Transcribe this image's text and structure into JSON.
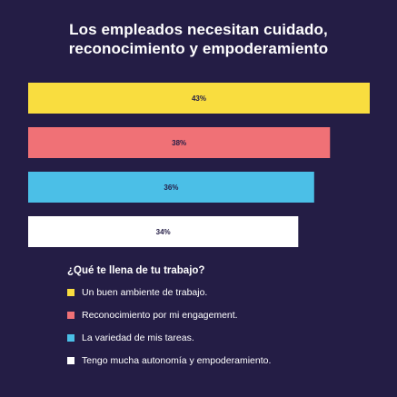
{
  "title": {
    "line1": "Los empleados necesitan cuidado,",
    "line2": "reconocimiento y empoderamiento"
  },
  "chart_data": {
    "type": "bar",
    "orientation": "horizontal",
    "values": [
      43,
      38,
      36,
      34
    ],
    "data_labels": [
      "43%",
      "38%",
      "36%",
      "34%"
    ],
    "colors": [
      "#f9dd3f",
      "#f07176",
      "#4bbfe7",
      "#ffffff"
    ],
    "xlim": [
      0,
      43
    ],
    "grid": false,
    "legend_title": "¿Qué te llena de tu trabajo?",
    "legend_placement": "bottom",
    "legend": [
      "Un buen ambiente de trabajo.",
      "Reconocimiento por mi engagement.",
      "La variedad de mis tareas.",
      "Tengo mucha autonomía y empoderamiento."
    ]
  },
  "colors": {
    "background": "#241d45",
    "label_text": "#241d45"
  }
}
